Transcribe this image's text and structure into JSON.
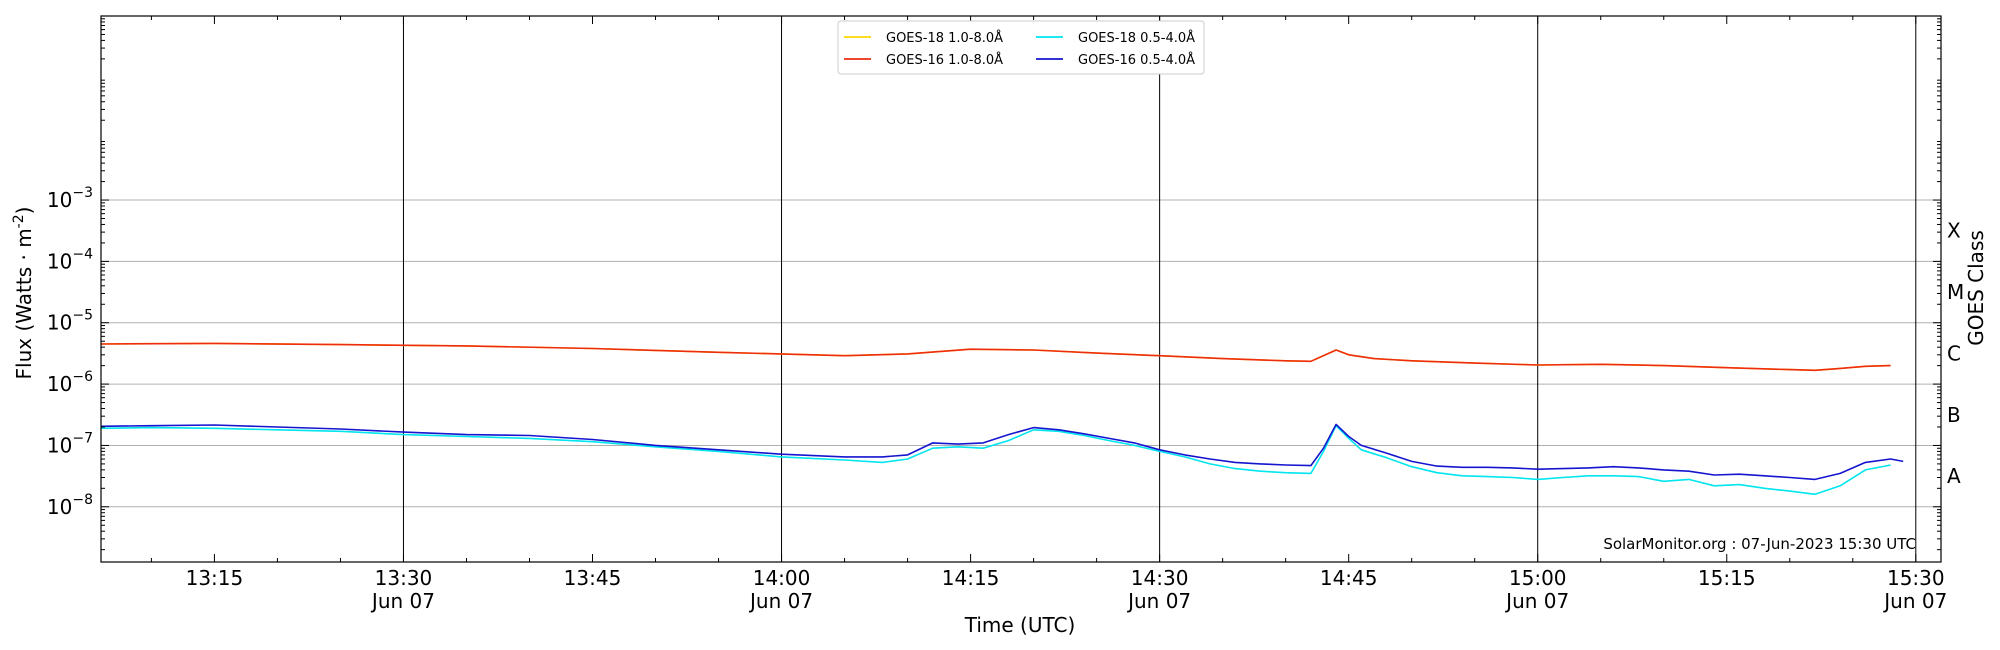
{
  "chart_data": {
    "type": "line",
    "xlabel": "Time (UTC)",
    "ylabel": "Flux (Watts · m",
    "ylabel_sup": "-2",
    "ylabel_close": ")",
    "right_label": "GOES Class",
    "credit": "SolarMonitor.org : 07-Jun-2023 15:30 UTC",
    "y_scale": "log",
    "ylim_exp": [
      -8.9,
      0.0
    ],
    "xlim_min": [
      786,
      932
    ],
    "grid": "horizontal at decades",
    "legend_position": "top-center",
    "x_ticks": [
      {
        "min": 795,
        "label": "13:15",
        "date": ""
      },
      {
        "min": 810,
        "label": "13:30",
        "date": "Jun 07"
      },
      {
        "min": 825,
        "label": "13:45",
        "date": ""
      },
      {
        "min": 840,
        "label": "14:00",
        "date": "Jun 07"
      },
      {
        "min": 855,
        "label": "14:15",
        "date": ""
      },
      {
        "min": 870,
        "label": "14:30",
        "date": "Jun 07"
      },
      {
        "min": 885,
        "label": "14:45",
        "date": ""
      },
      {
        "min": 900,
        "label": "15:00",
        "date": "Jun 07"
      },
      {
        "min": 915,
        "label": "15:15",
        "date": ""
      },
      {
        "min": 930,
        "label": "15:30",
        "date": "Jun 07"
      }
    ],
    "y_ticks": [
      {
        "exp": -8,
        "base": "10",
        "sup": "−8"
      },
      {
        "exp": -7,
        "base": "10",
        "sup": "−7"
      },
      {
        "exp": -6,
        "base": "10",
        "sup": "−6"
      },
      {
        "exp": -5,
        "base": "10",
        "sup": "−5"
      },
      {
        "exp": -4,
        "base": "10",
        "sup": "−4"
      },
      {
        "exp": -3,
        "base": "10",
        "sup": "−3"
      }
    ],
    "goes_classes": [
      {
        "label": "A",
        "exp": -7.5
      },
      {
        "label": "B",
        "exp": -6.5
      },
      {
        "label": "C",
        "exp": -5.5
      },
      {
        "label": "M",
        "exp": -4.5
      },
      {
        "label": "X",
        "exp": -3.5
      }
    ],
    "series": [
      {
        "name": "GOES-18 1.0-8.0Å",
        "color": "#FFD700",
        "x": [
          786,
          795,
          805,
          815,
          825,
          835,
          845,
          850,
          855,
          860,
          865,
          870,
          875,
          880,
          882,
          884,
          885,
          887,
          890,
          895,
          900,
          905,
          910,
          915,
          920,
          922,
          924,
          926,
          928
        ],
        "y": [
          4.5e-06,
          4.6e-06,
          4.4e-06,
          4.2e-06,
          3.8e-06,
          3.3e-06,
          2.9e-06,
          3.1e-06,
          3.7e-06,
          3.6e-06,
          3.2e-06,
          2.9e-06,
          2.6e-06,
          2.4e-06,
          2.35e-06,
          3.6e-06,
          3e-06,
          2.6e-06,
          2.4e-06,
          2.2e-06,
          2.05e-06,
          2.1e-06,
          2e-06,
          1.85e-06,
          1.72e-06,
          1.68e-06,
          1.8e-06,
          1.95e-06,
          2e-06
        ]
      },
      {
        "name": "GOES-18 0.5-4.0Å",
        "color": "#00E5EE",
        "x": [
          786,
          790,
          795,
          800,
          805,
          810,
          815,
          820,
          825,
          830,
          835,
          840,
          845,
          848,
          850,
          852,
          854,
          856,
          858,
          860,
          862,
          864,
          866,
          868,
          870,
          872,
          874,
          876,
          878,
          880,
          882,
          883,
          884,
          885,
          886,
          888,
          890,
          892,
          894,
          896,
          898,
          900,
          902,
          904,
          906,
          908,
          910,
          912,
          914,
          916,
          918,
          920,
          922,
          924,
          926,
          928
        ],
        "y": [
          1.9e-07,
          1.95e-07,
          1.9e-07,
          1.8e-07,
          1.7e-07,
          1.5e-07,
          1.4e-07,
          1.3e-07,
          1.15e-07,
          9.5e-08,
          8e-08,
          6.5e-08,
          5.8e-08,
          5.3e-08,
          6e-08,
          9e-08,
          9.5e-08,
          9e-08,
          1.2e-07,
          1.8e-07,
          1.7e-07,
          1.45e-07,
          1.2e-07,
          1e-07,
          8e-08,
          6.5e-08,
          5e-08,
          4.2e-08,
          3.8e-08,
          3.6e-08,
          3.5e-08,
          8e-08,
          2.1e-07,
          1.3e-07,
          8.5e-08,
          6.3e-08,
          4.5e-08,
          3.6e-08,
          3.2e-08,
          3.1e-08,
          3e-08,
          2.8e-08,
          3e-08,
          3.2e-08,
          3.2e-08,
          3.1e-08,
          2.6e-08,
          2.8e-08,
          2.2e-08,
          2.3e-08,
          2e-08,
          1.8e-08,
          1.6e-08,
          2.2e-08,
          4e-08,
          4.8e-08
        ]
      },
      {
        "name": "GOES-16 1.0-8.0Å",
        "color": "#EE2C10",
        "x": [
          786,
          795,
          805,
          815,
          825,
          835,
          845,
          850,
          855,
          860,
          865,
          870,
          875,
          880,
          882,
          884,
          885,
          887,
          890,
          895,
          900,
          905,
          910,
          915,
          920,
          922,
          924,
          926,
          928
        ],
        "y": [
          4.5e-06,
          4.6e-06,
          4.4e-06,
          4.2e-06,
          3.8e-06,
          3.3e-06,
          2.9e-06,
          3.1e-06,
          3.7e-06,
          3.6e-06,
          3.2e-06,
          2.9e-06,
          2.6e-06,
          2.4e-06,
          2.35e-06,
          3.6e-06,
          3e-06,
          2.6e-06,
          2.4e-06,
          2.2e-06,
          2.05e-06,
          2.1e-06,
          2e-06,
          1.85e-06,
          1.72e-06,
          1.68e-06,
          1.8e-06,
          1.95e-06,
          2e-06
        ]
      },
      {
        "name": "GOES-16 0.5-4.0Å",
        "color": "#1515D0",
        "x": [
          786,
          790,
          795,
          800,
          805,
          810,
          815,
          820,
          825,
          830,
          835,
          840,
          845,
          848,
          850,
          852,
          854,
          856,
          858,
          860,
          862,
          864,
          866,
          868,
          870,
          872,
          874,
          876,
          878,
          880,
          882,
          883,
          884,
          885,
          886,
          888,
          890,
          892,
          894,
          896,
          898,
          900,
          902,
          904,
          906,
          908,
          910,
          912,
          914,
          916,
          918,
          920,
          922,
          924,
          926,
          928,
          929
        ],
        "y": [
          2.05e-07,
          2.1e-07,
          2.15e-07,
          2e-07,
          1.85e-07,
          1.65e-07,
          1.5e-07,
          1.45e-07,
          1.25e-07,
          1e-07,
          8.5e-08,
          7.2e-08,
          6.5e-08,
          6.5e-08,
          7e-08,
          1.1e-07,
          1.05e-07,
          1.1e-07,
          1.5e-07,
          1.95e-07,
          1.8e-07,
          1.55e-07,
          1.3e-07,
          1.1e-07,
          8.5e-08,
          7e-08,
          6e-08,
          5.3e-08,
          5e-08,
          4.8e-08,
          4.7e-08,
          9e-08,
          2.2e-07,
          1.4e-07,
          1e-07,
          7.5e-08,
          5.5e-08,
          4.6e-08,
          4.4e-08,
          4.4e-08,
          4.3e-08,
          4.1e-08,
          4.2e-08,
          4.3e-08,
          4.5e-08,
          4.3e-08,
          4e-08,
          3.8e-08,
          3.3e-08,
          3.4e-08,
          3.2e-08,
          3e-08,
          2.8e-08,
          3.5e-08,
          5.3e-08,
          6e-08,
          5.5e-08
        ]
      }
    ]
  }
}
